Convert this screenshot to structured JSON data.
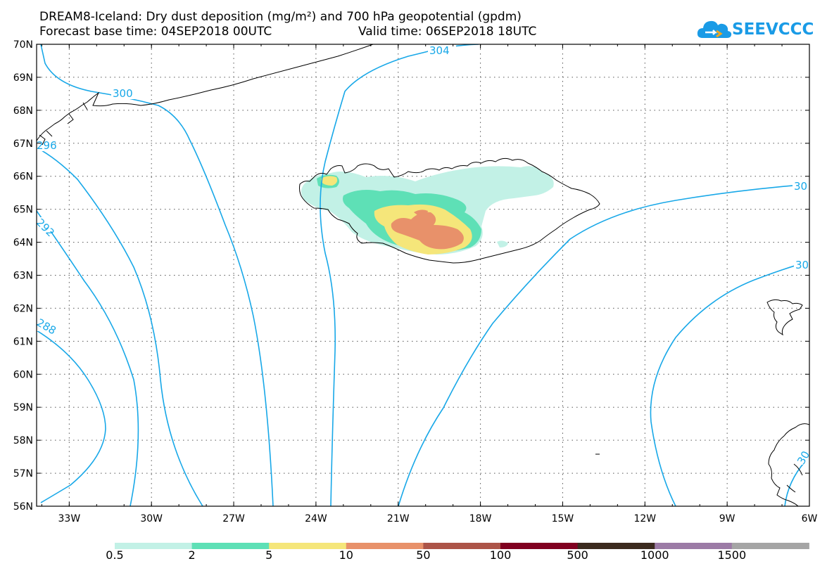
{
  "header": {
    "title": "DREAM8-Iceland: Dry dust deposition (mg/m²) and 700 hPa geopotential (gpdm)",
    "forecast_base": "Forecast base time: 04SEP2018 00UTC",
    "valid_time": "Valid time: 06SEP2018 18UTC"
  },
  "logo": {
    "text": "SEEVCCC",
    "color": "#1a9be6"
  },
  "map": {
    "lat_labels": [
      "70N",
      "69N",
      "68N",
      "67N",
      "66N",
      "65N",
      "64N",
      "63N",
      "62N",
      "61N",
      "60N",
      "59N",
      "58N",
      "57N",
      "56N"
    ],
    "lon_labels": [
      "33W",
      "30W",
      "27W",
      "24W",
      "21W",
      "18W",
      "15W",
      "12W",
      "9W",
      "6W"
    ],
    "contour_labels": [
      "300",
      "304",
      "296",
      "292",
      "288",
      "30",
      "30",
      "30"
    ],
    "contour_color": "#18a8e8"
  },
  "legend": {
    "labels": [
      "0.5",
      "2",
      "5",
      "10",
      "50",
      "100",
      "500",
      "1000",
      "1500"
    ],
    "colors": [
      "#c2f1e6",
      "#5ee0b6",
      "#f5e67a",
      "#e8916a",
      "#ac5448",
      "#800020",
      "#3b2a1e",
      "#9c7ba6",
      "#a5a5a5"
    ]
  }
}
